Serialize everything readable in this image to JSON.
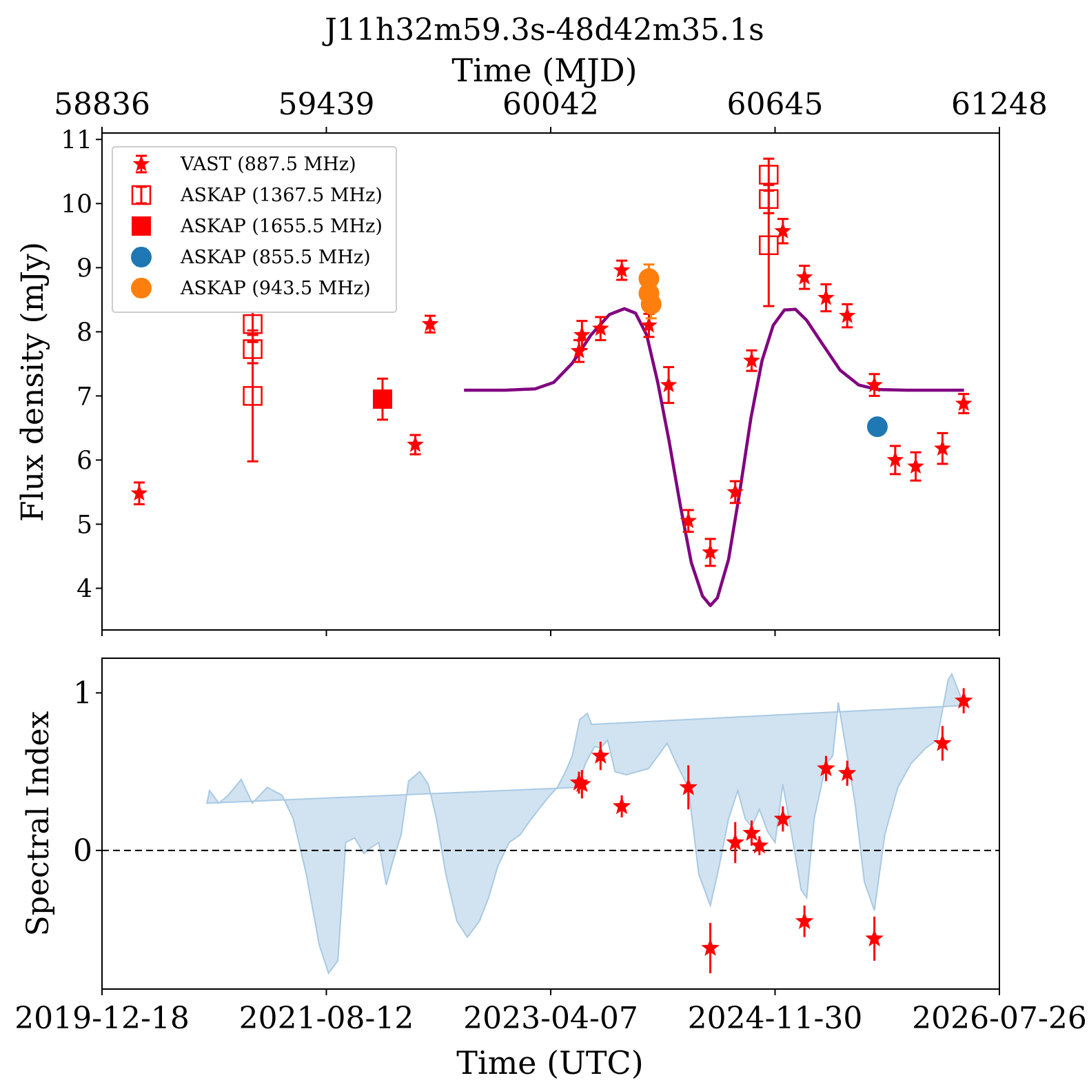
{
  "figure": {
    "title": "J11h32m59.3s-48d42m35.1s",
    "top_xlabel": "Time (MJD)",
    "bottom_xlabel": "Time (UTC)",
    "top_ylabel": "Flux density (mJy)",
    "bottom_ylabel": "Spectral Index"
  },
  "colors": {
    "red": "#ff0000",
    "blue": "#1f77b4",
    "orange": "#ff7f0e",
    "purple": "#800080",
    "band": "#b8d4ea"
  },
  "chart_data": [
    {
      "type": "scatter",
      "name": "flux",
      "xlabel": "Time (UTC)",
      "ylabel": "Flux density (mJy)",
      "x_axis": "MJD",
      "xlim": [
        58836,
        61248
      ],
      "ylim": [
        3.35,
        11.1
      ],
      "yticks": [
        4,
        5,
        6,
        7,
        8,
        9,
        10,
        11
      ],
      "mjd_ticks": [
        "58836",
        "59439",
        "60042",
        "60645",
        "61248"
      ],
      "date_ticks": [
        "2019-12-18",
        "2021-08-12",
        "2023-04-07",
        "2024-11-30",
        "2026-07-26"
      ],
      "legend_position": "top-left",
      "series": [
        {
          "label": "VAST (887.5 MHz)",
          "marker": "star",
          "color": "#ff0000",
          "points": [
            {
              "x": 58936,
              "y": 5.48,
              "err": 0.17
            },
            {
              "x": 59678,
              "y": 6.24,
              "err": 0.15
            },
            {
              "x": 59718,
              "y": 8.12,
              "err": 0.13
            },
            {
              "x": 60118,
              "y": 7.7,
              "err": 0.17
            },
            {
              "x": 60126,
              "y": 7.95,
              "err": 0.22
            },
            {
              "x": 60176,
              "y": 8.05,
              "err": 0.18
            },
            {
              "x": 60233,
              "y": 8.96,
              "err": 0.15
            },
            {
              "x": 60306,
              "y": 8.1,
              "err": 0.18
            },
            {
              "x": 60359,
              "y": 7.17,
              "err": 0.28
            },
            {
              "x": 60412,
              "y": 5.05,
              "err": 0.17
            },
            {
              "x": 60471,
              "y": 4.56,
              "err": 0.21
            },
            {
              "x": 60538,
              "y": 5.5,
              "err": 0.17
            },
            {
              "x": 60582,
              "y": 7.55,
              "err": 0.16
            },
            {
              "x": 60666,
              "y": 9.57,
              "err": 0.19
            },
            {
              "x": 60724,
              "y": 8.85,
              "err": 0.18
            },
            {
              "x": 60782,
              "y": 8.53,
              "err": 0.21
            },
            {
              "x": 60839,
              "y": 8.25,
              "err": 0.18
            },
            {
              "x": 60912,
              "y": 7.17,
              "err": 0.17
            },
            {
              "x": 60968,
              "y": 6.0,
              "err": 0.22
            },
            {
              "x": 61023,
              "y": 5.9,
              "err": 0.22
            },
            {
              "x": 61095,
              "y": 6.18,
              "err": 0.24
            },
            {
              "x": 61152,
              "y": 6.88,
              "err": 0.15
            }
          ]
        },
        {
          "label": "ASKAP (1367.5 MHz)",
          "marker": "open-square",
          "color": "#ff0000",
          "points": [
            {
              "x": 59241,
              "y": 8.12,
              "err": 0.28
            },
            {
              "x": 59241,
              "y": 7.73,
              "err": 0.22
            },
            {
              "x": 59241,
              "y": 7.0,
              "err": 1.02
            },
            {
              "x": 60628,
              "y": 10.45,
              "err": 0.25
            },
            {
              "x": 60628,
              "y": 10.07,
              "err": 0.22
            },
            {
              "x": 60628,
              "y": 9.35,
              "err": 0.95
            }
          ]
        },
        {
          "label": "ASKAP (1655.5 MHz)",
          "marker": "filled-square",
          "color": "#ff0000",
          "points": [
            {
              "x": 59590,
              "y": 6.95,
              "err": 0.32
            }
          ]
        },
        {
          "label": "ASKAP (855.5 MHz)",
          "marker": "circle",
          "color": "#1f77b4",
          "points": [
            {
              "x": 60920,
              "y": 6.52,
              "err": 0.06
            }
          ]
        },
        {
          "label": "ASKAP (943.5 MHz)",
          "marker": "circle",
          "color": "#ff7f0e",
          "points": [
            {
              "x": 60306,
              "y": 8.83,
              "err": 0.22
            },
            {
              "x": 60306,
              "y": 8.6,
              "err": 0.22
            },
            {
              "x": 60312,
              "y": 8.43,
              "err": 0.22
            }
          ]
        }
      ],
      "model_curve": {
        "color": "#800080",
        "points": [
          [
            59809,
            7.09
          ],
          [
            59920,
            7.09
          ],
          [
            60000,
            7.11
          ],
          [
            60050,
            7.21
          ],
          [
            60100,
            7.51
          ],
          [
            60150,
            7.95
          ],
          [
            60200,
            8.27
          ],
          [
            60240,
            8.36
          ],
          [
            60270,
            8.29
          ],
          [
            60300,
            7.95
          ],
          [
            60330,
            7.2
          ],
          [
            60360,
            6.3
          ],
          [
            60390,
            5.3
          ],
          [
            60420,
            4.4
          ],
          [
            60450,
            3.88
          ],
          [
            60471,
            3.73
          ],
          [
            60490,
            3.85
          ],
          [
            60520,
            4.45
          ],
          [
            60550,
            5.5
          ],
          [
            60580,
            6.65
          ],
          [
            60610,
            7.55
          ],
          [
            60640,
            8.1
          ],
          [
            60670,
            8.34
          ],
          [
            60700,
            8.35
          ],
          [
            60730,
            8.18
          ],
          [
            60770,
            7.83
          ],
          [
            60820,
            7.4
          ],
          [
            60870,
            7.17
          ],
          [
            60920,
            7.1
          ],
          [
            61000,
            7.09
          ],
          [
            61153,
            7.09
          ]
        ]
      }
    },
    {
      "type": "scatter",
      "name": "spectral-index",
      "xlabel": "Time (UTC)",
      "ylabel": "Spectral Index",
      "xlim": [
        58836,
        61248
      ],
      "ylim": [
        -0.88,
        1.22
      ],
      "yticks": [
        0,
        1
      ],
      "zero_line": "dashed",
      "points": [
        {
          "x": 60118,
          "y": 0.43,
          "err": 0.07
        },
        {
          "x": 60126,
          "y": 0.42,
          "err": 0.09
        },
        {
          "x": 60176,
          "y": 0.6,
          "err": 0.09
        },
        {
          "x": 60233,
          "y": 0.28,
          "err": 0.07
        },
        {
          "x": 60412,
          "y": 0.4,
          "err": 0.14
        },
        {
          "x": 60471,
          "y": -0.62,
          "err": 0.16
        },
        {
          "x": 60538,
          "y": 0.05,
          "err": 0.13
        },
        {
          "x": 60582,
          "y": 0.11,
          "err": 0.08
        },
        {
          "x": 60603,
          "y": 0.03,
          "err": 0.06
        },
        {
          "x": 60666,
          "y": 0.2,
          "err": 0.08
        },
        {
          "x": 60724,
          "y": -0.45,
          "err": 0.1
        },
        {
          "x": 60782,
          "y": 0.52,
          "err": 0.08
        },
        {
          "x": 60839,
          "y": 0.49,
          "err": 0.08
        },
        {
          "x": 60912,
          "y": -0.56,
          "err": 0.14
        },
        {
          "x": 61095,
          "y": 0.68,
          "err": 0.11
        },
        {
          "x": 61152,
          "y": 0.95,
          "err": 0.08
        }
      ],
      "band_upper": [
        [
          60116,
          0.4
        ],
        [
          60135,
          0.55
        ],
        [
          60160,
          0.66
        ],
        [
          60176,
          0.65
        ],
        [
          60195,
          0.7
        ],
        [
          60215,
          0.5
        ],
        [
          60245,
          0.48
        ],
        [
          60275,
          0.5
        ],
        [
          60305,
          0.52
        ],
        [
          60330,
          0.6
        ],
        [
          60355,
          0.68
        ],
        [
          60380,
          0.55
        ],
        [
          60412,
          0.4
        ],
        [
          60440,
          -0.15
        ],
        [
          60471,
          -0.35
        ],
        [
          60495,
          -0.1
        ],
        [
          60520,
          0.2
        ],
        [
          60545,
          0.38
        ],
        [
          60565,
          0.2
        ],
        [
          60582,
          0.15
        ],
        [
          60603,
          0.26
        ],
        [
          60625,
          0.12
        ],
        [
          60645,
          0.05
        ],
        [
          60666,
          0.42
        ],
        [
          60690,
          0.1
        ],
        [
          60715,
          -0.25
        ],
        [
          60730,
          -0.3
        ],
        [
          60750,
          0.2
        ],
        [
          60782,
          0.55
        ],
        [
          60800,
          0.6
        ],
        [
          60815,
          0.94
        ],
        [
          60839,
          0.6
        ],
        [
          60860,
          0.3
        ],
        [
          60885,
          -0.2
        ],
        [
          60912,
          -0.38
        ],
        [
          60940,
          0.1
        ],
        [
          60975,
          0.4
        ],
        [
          61010,
          0.55
        ],
        [
          61050,
          0.65
        ],
        [
          61080,
          0.7
        ],
        [
          61110,
          1.08
        ],
        [
          61120,
          1.12
        ],
        [
          61140,
          1.0
        ],
        [
          61152,
          0.92
        ]
      ],
      "band_lower": [
        [
          60152,
          0.8
        ],
        [
          60140,
          0.87
        ],
        [
          60120,
          0.83
        ],
        [
          60100,
          0.6
        ],
        [
          60080,
          0.49
        ],
        [
          60060,
          0.4
        ],
        [
          60040,
          0.35
        ],
        [
          60016,
          0.28
        ],
        [
          59990,
          0.2
        ],
        [
          59960,
          0.1
        ],
        [
          59930,
          0.05
        ],
        [
          59900,
          -0.1
        ],
        [
          59875,
          -0.3
        ],
        [
          59850,
          -0.45
        ],
        [
          59818,
          -0.55
        ],
        [
          59790,
          -0.45
        ],
        [
          59760,
          -0.15
        ],
        [
          59735,
          0.2
        ],
        [
          59713,
          0.42
        ],
        [
          59690,
          0.5
        ],
        [
          59660,
          0.44
        ],
        [
          59640,
          0.1
        ],
        [
          59620,
          -0.05
        ],
        [
          59600,
          -0.22
        ],
        [
          59580,
          0.05
        ],
        [
          59560,
          0.02
        ],
        [
          59540,
          -0.02
        ],
        [
          59515,
          0.08
        ],
        [
          59491,
          0.05
        ],
        [
          59470,
          -0.7
        ],
        [
          59445,
          -0.78
        ],
        [
          59420,
          -0.6
        ],
        [
          59385,
          -0.15
        ],
        [
          59350,
          0.2
        ],
        [
          59320,
          0.35
        ],
        [
          59280,
          0.4
        ],
        [
          59240,
          0.3
        ],
        [
          59210,
          0.45
        ],
        [
          59175,
          0.35
        ],
        [
          59150,
          0.3
        ],
        [
          59125,
          0.38
        ],
        [
          59118,
          0.3
        ]
      ]
    }
  ]
}
